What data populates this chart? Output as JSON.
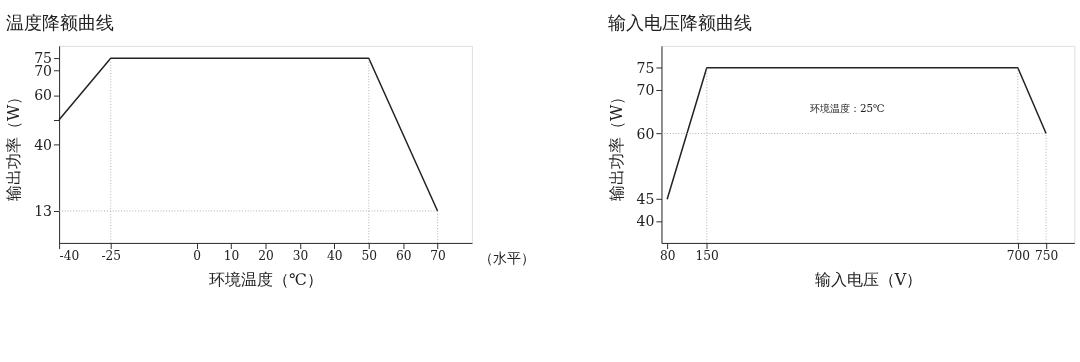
{
  "chart_data": [
    {
      "type": "line",
      "title": "温度降额曲线",
      "xlabel": "环境温度（℃）",
      "ylabel": "输出功率（W）",
      "x": [
        -40,
        -25,
        50,
        70
      ],
      "values": [
        50,
        75,
        75,
        13
      ],
      "color": "#222222",
      "xlim": [
        -40,
        80
      ],
      "xticks": [
        -40,
        -25,
        0,
        10,
        20,
        30,
        40,
        50,
        60,
        70
      ],
      "ylim": [
        0,
        80
      ],
      "yticks": [
        13,
        40,
        {
          "value": 50,
          "label": null
        },
        60,
        70,
        75
      ],
      "grid": false,
      "marker": "none",
      "line_style": "solid",
      "ref_lines": [
        {
          "axis": "y",
          "value": 13,
          "color": "#aaaaaa",
          "line_style": "dotted"
        },
        {
          "axis": "x",
          "value": -25,
          "color": "#aaaaaa",
          "line_style": "dotted"
        },
        {
          "axis": "x",
          "value": 50,
          "color": "#aaaaaa",
          "line_style": "dotted"
        },
        {
          "axis": "x",
          "value": 70,
          "color": "#aaaaaa",
          "line_style": "dotted"
        }
      ],
      "annotations": [
        "（水平）"
      ]
    },
    {
      "type": "line",
      "title": "输入电压降额曲线",
      "xlabel": "输入电压（V）",
      "ylabel": "输出功率（W）",
      "x": [
        80,
        150,
        700,
        750
      ],
      "values": [
        45,
        75,
        75,
        60
      ],
      "color": "#222222",
      "xlim": [
        70,
        800
      ],
      "xticks": [
        80,
        150,
        700,
        750
      ],
      "ylim": [
        35,
        80
      ],
      "yticks": [
        40,
        45,
        60,
        70,
        75
      ],
      "grid": false,
      "marker": "none",
      "line_style": "solid",
      "ref_lines": [
        {
          "axis": "y",
          "value": 60,
          "color": "#aaaaaa",
          "line_style": "dotted"
        },
        {
          "axis": "x",
          "value": 150,
          "color": "#aaaaaa",
          "line_style": "dotted"
        },
        {
          "axis": "x",
          "value": 700,
          "color": "#aaaaaa",
          "line_style": "dotted"
        },
        {
          "axis": "x",
          "value": 750,
          "color": "#aaaaaa",
          "line_style": "dotted"
        }
      ],
      "annotations": [
        "环境温度：25℃"
      ]
    }
  ]
}
